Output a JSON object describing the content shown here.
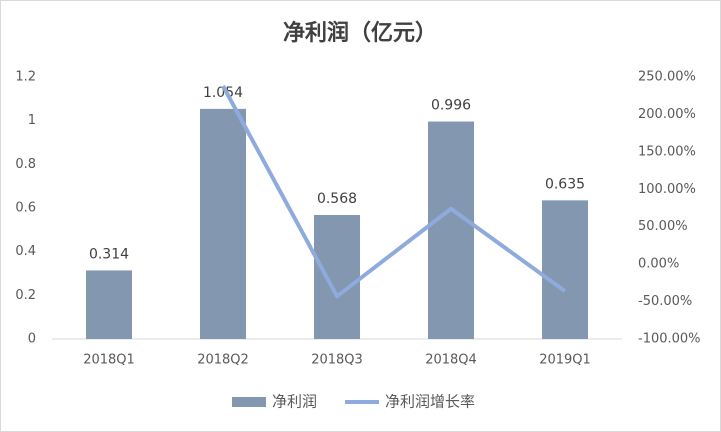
{
  "chart_data": {
    "type": "bar",
    "title": "净利润（亿元）",
    "categories": [
      "2018Q1",
      "2018Q2",
      "2018Q3",
      "2018Q4",
      "2019Q1"
    ],
    "series": [
      {
        "name": "净利润",
        "type": "bar",
        "color": "#8497b0",
        "values": [
          0.314,
          1.054,
          0.568,
          0.996,
          0.635
        ]
      },
      {
        "name": "净利润增长率",
        "type": "line",
        "axis": "y2",
        "color": "#8faadc",
        "values": [
          null,
          238,
          -43,
          74,
          -36
        ]
      }
    ],
    "ylim": [
      0,
      1.2
    ],
    "yticks": [
      0,
      0.2,
      0.4,
      0.6,
      0.8,
      1,
      1.2
    ],
    "y2lim": [
      -100,
      250
    ],
    "y2ticks": [
      {
        "value": -100,
        "label": "-100.00%"
      },
      {
        "value": -50,
        "label": "-50.00%"
      },
      {
        "value": 0,
        "label": "0.00%"
      },
      {
        "value": 50,
        "label": "50.00%"
      },
      {
        "value": 100,
        "label": "100.00%"
      },
      {
        "value": 150,
        "label": "150.00%"
      },
      {
        "value": 200,
        "label": "200.00%"
      },
      {
        "value": 250,
        "label": "250.00%"
      }
    ],
    "legend": "bottom"
  }
}
